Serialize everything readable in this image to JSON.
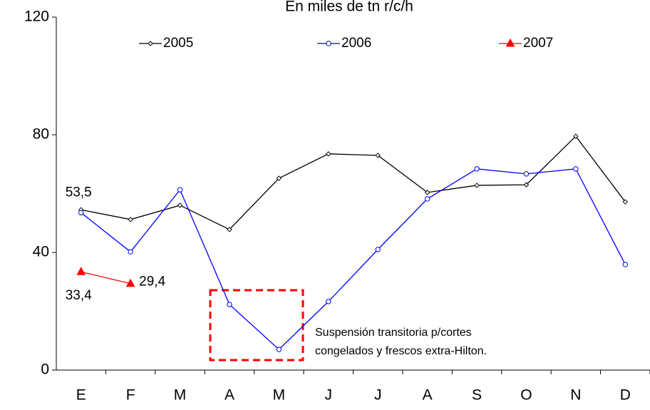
{
  "chart_data": {
    "type": "line",
    "title": "En miles de tn r/c/h",
    "categories": [
      "E",
      "F",
      "M",
      "A",
      "M",
      "J",
      "J",
      "A",
      "S",
      "O",
      "N",
      "D"
    ],
    "series": [
      {
        "name": "2005",
        "color": "#000000",
        "marker": "diamond",
        "values": [
          54.5,
          51.2,
          56.0,
          47.8,
          65.2,
          73.5,
          73.0,
          60.4,
          62.8,
          63.0,
          79.5,
          57.2
        ]
      },
      {
        "name": "2006",
        "color": "#0000ff",
        "marker": "circle",
        "values": [
          53.5,
          40.2,
          61.3,
          22.3,
          7.0,
          23.3,
          41.0,
          58.2,
          68.4,
          66.7,
          68.4,
          35.9
        ],
        "value_labels": [
          "53,5",
          null,
          null,
          null,
          null,
          null,
          null,
          null,
          null,
          null,
          null,
          null
        ]
      },
      {
        "name": "2007",
        "color": "#ff0000",
        "marker": "triangle",
        "values": [
          33.4,
          29.4,
          null,
          null,
          null,
          null,
          null,
          null,
          null,
          null,
          null,
          null
        ],
        "value_labels": [
          "33,4",
          "29,4",
          null,
          null,
          null,
          null,
          null,
          null,
          null,
          null,
          null,
          null
        ]
      }
    ],
    "ylim": [
      0,
      120
    ],
    "yticks": [
      0,
      40,
      80,
      120
    ],
    "grid": false,
    "annotation": {
      "lines": [
        "Suspensión transitoria p/cortes",
        "congelados y frescos extra-Hilton."
      ]
    }
  }
}
